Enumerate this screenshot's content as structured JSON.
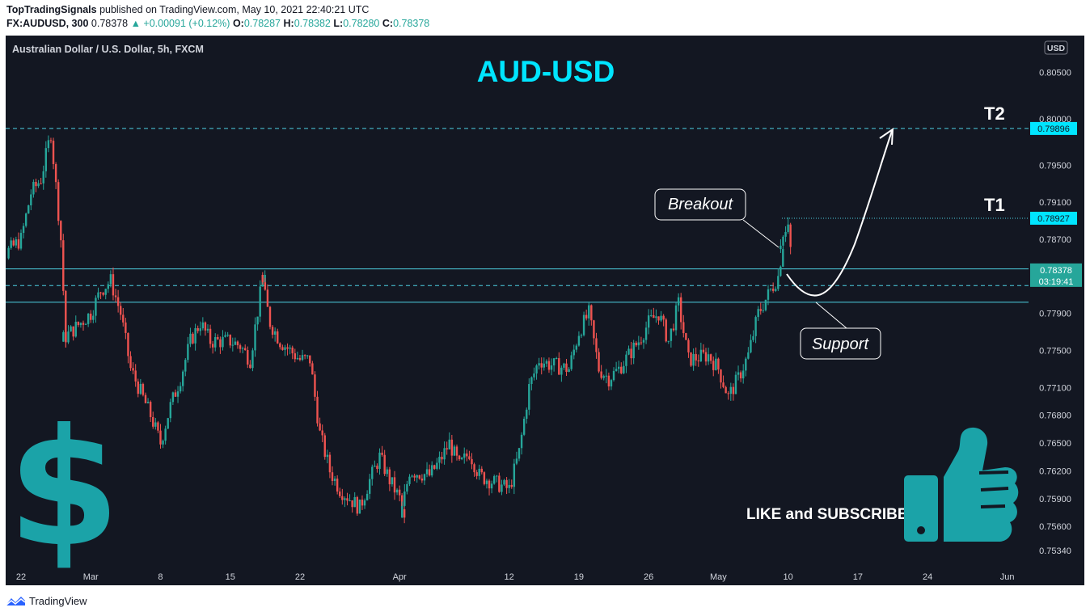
{
  "header": {
    "publisher": "TopTradingSignals",
    "published_text": "published on TradingView.com, May 10, 2021 22:40:21 UTC",
    "symbol": "FX:AUDUSD, 300",
    "last": "0.78378",
    "change": "▲ +0.00091 (+0.12%)",
    "o_label": "O:",
    "o": "0.78287",
    "h_label": "H:",
    "h": "0.78382",
    "l_label": "L:",
    "l": "0.78280",
    "c_label": "C:",
    "c": "0.78378"
  },
  "chart_title": "Australian Dollar / U.S. Dollar, 5h, FXCM",
  "currency_badge": "USD",
  "headline": "AUD-USD",
  "labels": {
    "t2": "T2",
    "t1": "T1",
    "breakout": "Breakout",
    "support": "Support",
    "cta": "LIKE and SUBSCRIBE"
  },
  "price_tags": {
    "t2": "0.79896",
    "t1": "0.78927",
    "current": "0.78378",
    "countdown": "03:19:41"
  },
  "footer": {
    "brand": "TradingView"
  },
  "colors": {
    "background": "#131722",
    "up": "#26a69a",
    "down": "#ef5350",
    "cyan": "#00e5ff",
    "level_line": "#4dd0e1",
    "icon_teal": "#1ba3a8"
  },
  "icons": [
    "dollar-sign-icon",
    "thumbs-up-icon",
    "tradingview-logo-icon"
  ],
  "chart_data": {
    "type": "candlestick",
    "title": "Australian Dollar / U.S. Dollar, 5h, FXCM",
    "symbol": "AUDUSD",
    "timeframe": "5h",
    "x_ticks": [
      "22",
      "Mar",
      "8",
      "15",
      "22",
      "Apr",
      "12",
      "19",
      "26",
      "May",
      "10",
      "17",
      "24",
      "Jun"
    ],
    "y_ticks": [
      "0.80500",
      "0.80000",
      "0.79500",
      "0.79100",
      "0.78700",
      "0.77900",
      "0.77500",
      "0.77100",
      "0.76800",
      "0.76500",
      "0.76200",
      "0.75900",
      "0.75600",
      "0.75340"
    ],
    "ylim": [
      0.7525,
      0.8062
    ],
    "horizontal_levels": [
      {
        "label": "T2",
        "value": 0.79896,
        "style": "dashed"
      },
      {
        "label": "T1",
        "value": 0.78927,
        "style": "dotted"
      },
      {
        "value": 0.7838,
        "style": "solid"
      },
      {
        "value": 0.782,
        "style": "dashed"
      },
      {
        "value": 0.7802,
        "style": "solid"
      }
    ],
    "path_keypoints_close": [
      {
        "date": "Feb 19",
        "close": 0.778
      },
      {
        "date": "Feb 20",
        "close": 0.785
      },
      {
        "date": "Feb 22",
        "close": 0.787
      },
      {
        "date": "Feb 23",
        "close": 0.792
      },
      {
        "date": "Feb 24",
        "close": 0.7935
      },
      {
        "date": "Feb 25",
        "close": 0.7985
      },
      {
        "date": "Feb 26",
        "close": 0.787
      },
      {
        "date": "Feb 26",
        "close": 0.776
      },
      {
        "date": "Mar 1",
        "close": 0.779
      },
      {
        "date": "Mar 2",
        "close": 0.7815
      },
      {
        "date": "Mar 3",
        "close": 0.7825
      },
      {
        "date": "Mar 4",
        "close": 0.779
      },
      {
        "date": "Mar 5",
        "close": 0.773
      },
      {
        "date": "Mar 7",
        "close": 0.768
      },
      {
        "date": "Mar 8",
        "close": 0.765
      },
      {
        "date": "Mar 9",
        "close": 0.769
      },
      {
        "date": "Mar 10",
        "close": 0.772
      },
      {
        "date": "Mar 11",
        "close": 0.776
      },
      {
        "date": "Mar 12",
        "close": 0.778
      },
      {
        "date": "Mar 13",
        "close": 0.776
      },
      {
        "date": "Mar 15",
        "close": 0.776
      },
      {
        "date": "Mar 16",
        "close": 0.7755
      },
      {
        "date": "Mar 17",
        "close": 0.774
      },
      {
        "date": "Mar 18",
        "close": 0.781
      },
      {
        "date": "Mar 18",
        "close": 0.7835
      },
      {
        "date": "Mar 19",
        "close": 0.778
      },
      {
        "date": "Mar 20",
        "close": 0.776
      },
      {
        "date": "Mar 22",
        "close": 0.774
      },
      {
        "date": "Mar 23",
        "close": 0.774
      },
      {
        "date": "Mar 24",
        "close": 0.766
      },
      {
        "date": "Mar 25",
        "close": 0.762
      },
      {
        "date": "Mar 26",
        "close": 0.76
      },
      {
        "date": "Mar 28",
        "close": 0.758
      },
      {
        "date": "Mar 29",
        "close": 0.761
      },
      {
        "date": "Mar 30",
        "close": 0.7635
      },
      {
        "date": "Mar 31",
        "close": 0.761
      },
      {
        "date": "Apr 1",
        "close": 0.759
      },
      {
        "date": "Apr 1",
        "close": 0.7565
      },
      {
        "date": "Apr 2",
        "close": 0.762
      },
      {
        "date": "Apr 4",
        "close": 0.7615
      },
      {
        "date": "Apr 5",
        "close": 0.763
      },
      {
        "date": "Apr 6",
        "close": 0.765
      },
      {
        "date": "Apr 7",
        "close": 0.7625
      },
      {
        "date": "Apr 8",
        "close": 0.764
      },
      {
        "date": "Apr 9",
        "close": 0.7615
      },
      {
        "date": "Apr 11",
        "close": 0.7605
      },
      {
        "date": "Apr 12",
        "close": 0.76
      },
      {
        "date": "Apr 13",
        "close": 0.764
      },
      {
        "date": "Apr 14",
        "close": 0.771
      },
      {
        "date": "Apr 15",
        "close": 0.774
      },
      {
        "date": "Apr 16",
        "close": 0.7735
      },
      {
        "date": "Apr 18",
        "close": 0.773
      },
      {
        "date": "Apr 19",
        "close": 0.777
      },
      {
        "date": "Apr 20",
        "close": 0.779
      },
      {
        "date": "Apr 21",
        "close": 0.773
      },
      {
        "date": "Apr 22",
        "close": 0.772
      },
      {
        "date": "Apr 23",
        "close": 0.773
      },
      {
        "date": "Apr 25",
        "close": 0.776
      },
      {
        "date": "Apr 26",
        "close": 0.778
      },
      {
        "date": "Apr 27",
        "close": 0.779
      },
      {
        "date": "Apr 28",
        "close": 0.776
      },
      {
        "date": "Apr 29",
        "close": 0.78
      },
      {
        "date": "Apr 30",
        "close": 0.774
      },
      {
        "date": "May 2",
        "close": 0.7745
      },
      {
        "date": "May 3",
        "close": 0.773
      },
      {
        "date": "May 4",
        "close": 0.77
      },
      {
        "date": "May 5",
        "close": 0.772
      },
      {
        "date": "May 6",
        "close": 0.7745
      },
      {
        "date": "May 7",
        "close": 0.779
      },
      {
        "date": "May 9",
        "close": 0.783
      },
      {
        "date": "May 9",
        "close": 0.7865
      },
      {
        "date": "May 10",
        "close": 0.788
      },
      {
        "date": "May 10",
        "close": 0.7838
      }
    ]
  }
}
